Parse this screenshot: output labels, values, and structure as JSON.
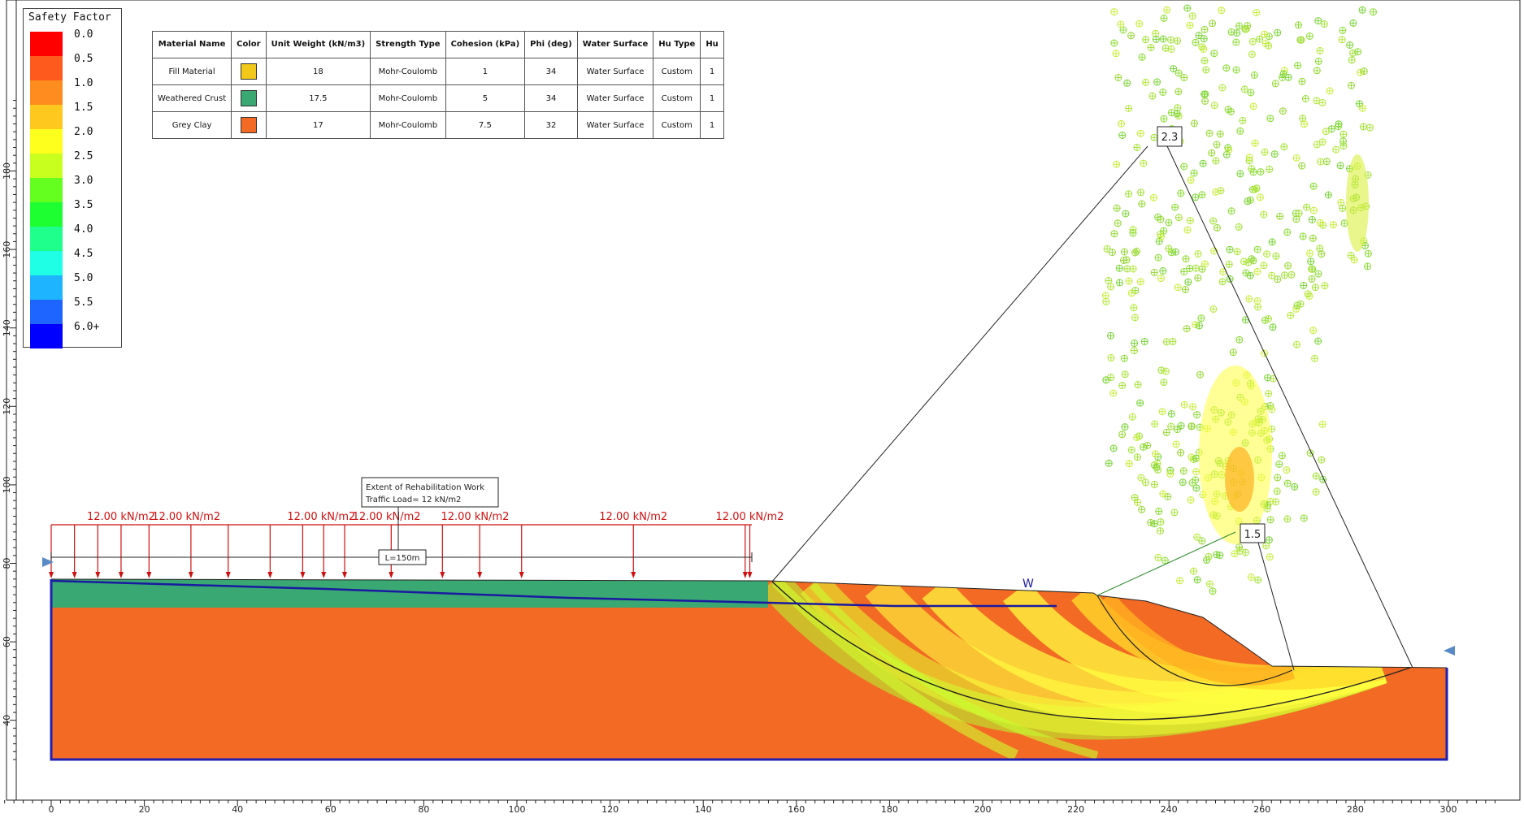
{
  "legend": {
    "title": "Safety Factor",
    "levels": [
      {
        "label": "0.0",
        "color": "#ff0000"
      },
      {
        "label": "0.5",
        "color": "#ff5a1e"
      },
      {
        "label": "1.0",
        "color": "#ff8c1e"
      },
      {
        "label": "1.5",
        "color": "#ffc81e"
      },
      {
        "label": "2.0",
        "color": "#ffff1e"
      },
      {
        "label": "2.5",
        "color": "#c8ff1e"
      },
      {
        "label": "3.0",
        "color": "#64ff1e"
      },
      {
        "label": "3.5",
        "color": "#1eff32"
      },
      {
        "label": "4.0",
        "color": "#1eff8c"
      },
      {
        "label": "4.5",
        "color": "#1effe6"
      },
      {
        "label": "5.0",
        "color": "#1eb4ff"
      },
      {
        "label": "5.5",
        "color": "#1e64ff"
      },
      {
        "label": "6.0+",
        "color": "#0000ff"
      }
    ]
  },
  "materials": {
    "headers": [
      "Material Name",
      "Color",
      "Unit Weight (kN/m3)",
      "Strength Type",
      "Cohesion (kPa)",
      "Phi (deg)",
      "Water Surface",
      "Hu Type",
      "Hu"
    ],
    "rows": [
      {
        "name": "Fill Material",
        "color": "#f2c81a",
        "unit_weight": "18",
        "strength": "Mohr-Coulomb",
        "cohesion": "1",
        "phi": "34",
        "water": "Water Surface",
        "hu_type": "Custom",
        "hu": "1"
      },
      {
        "name": "Weathered Crust",
        "color": "#3aa872",
        "unit_weight": "17.5",
        "strength": "Mohr-Coulomb",
        "cohesion": "5",
        "phi": "34",
        "water": "Water Surface",
        "hu_type": "Custom",
        "hu": "1"
      },
      {
        "name": "Grey Clay",
        "color": "#f26a24",
        "unit_weight": "17",
        "strength": "Mohr-Coulomb",
        "cohesion": "7.5",
        "phi": "32",
        "water": "Water Surface",
        "hu_type": "Custom",
        "hu": "1"
      }
    ]
  },
  "annotations": {
    "rehab_line1": "Extent of Rehabilitation Work",
    "rehab_line2": "Traffic Load= 12 kN/m2",
    "length_label": "L=150m",
    "water_label": "W",
    "fs_global": "2.3",
    "fs_local": "1.5"
  },
  "loads": {
    "label": "12.00 kN/m2",
    "label_x": [
      15,
      29,
      58,
      72,
      91,
      125,
      150
    ]
  },
  "axes": {
    "x_ticks": [
      0,
      20,
      40,
      60,
      80,
      100,
      120,
      140,
      160,
      180,
      200,
      220,
      240,
      260,
      280,
      300
    ],
    "y_ticks": [
      40,
      60,
      80,
      100,
      120,
      140,
      160,
      180
    ]
  },
  "colors": {
    "crust": "#3aa872",
    "clay": "#f26a24",
    "water_line": "#1a1aa0",
    "load": "#d01010"
  }
}
